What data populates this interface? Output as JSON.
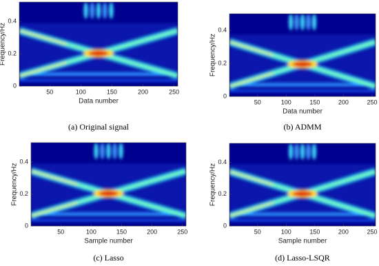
{
  "chart_data": [
    {
      "type": "heatmap",
      "caption": "(a) Original signal",
      "x_label": "Data number",
      "y_label": "Frequency/Hz",
      "xlim": [
        1,
        256
      ],
      "ylim": [
        0,
        0.52
      ],
      "xticks": [
        50,
        100,
        150,
        200,
        250
      ],
      "yticks": [
        0,
        0.2,
        0.4
      ]
    },
    {
      "type": "heatmap",
      "caption": "(b) ADMM",
      "x_label": "Data number",
      "y_label": "Frequency/Hz",
      "xlim": [
        1,
        256
      ],
      "ylim": [
        0,
        0.5
      ],
      "xticks": [
        50,
        100,
        150,
        200,
        250
      ],
      "yticks": [
        0,
        0.2,
        0.4
      ]
    },
    {
      "type": "heatmap",
      "caption": "(c) Lasso",
      "x_label": "Sample number",
      "y_label": "Frequency/Hz",
      "xlim": [
        1,
        256
      ],
      "ylim": [
        0,
        0.52
      ],
      "xticks": [
        50,
        100,
        150,
        200,
        250
      ],
      "yticks": [
        0,
        0.2,
        0.4
      ]
    },
    {
      "type": "heatmap",
      "caption": "(d) Lasso-LSQR",
      "x_label": "Sample number",
      "y_label": "Frequency/Hz",
      "xlim": [
        1,
        256
      ],
      "ylim": [
        0,
        0.52
      ],
      "xticks": [
        50,
        100,
        150,
        200,
        250
      ],
      "yticks": [
        0,
        0.2,
        0.4
      ]
    }
  ]
}
